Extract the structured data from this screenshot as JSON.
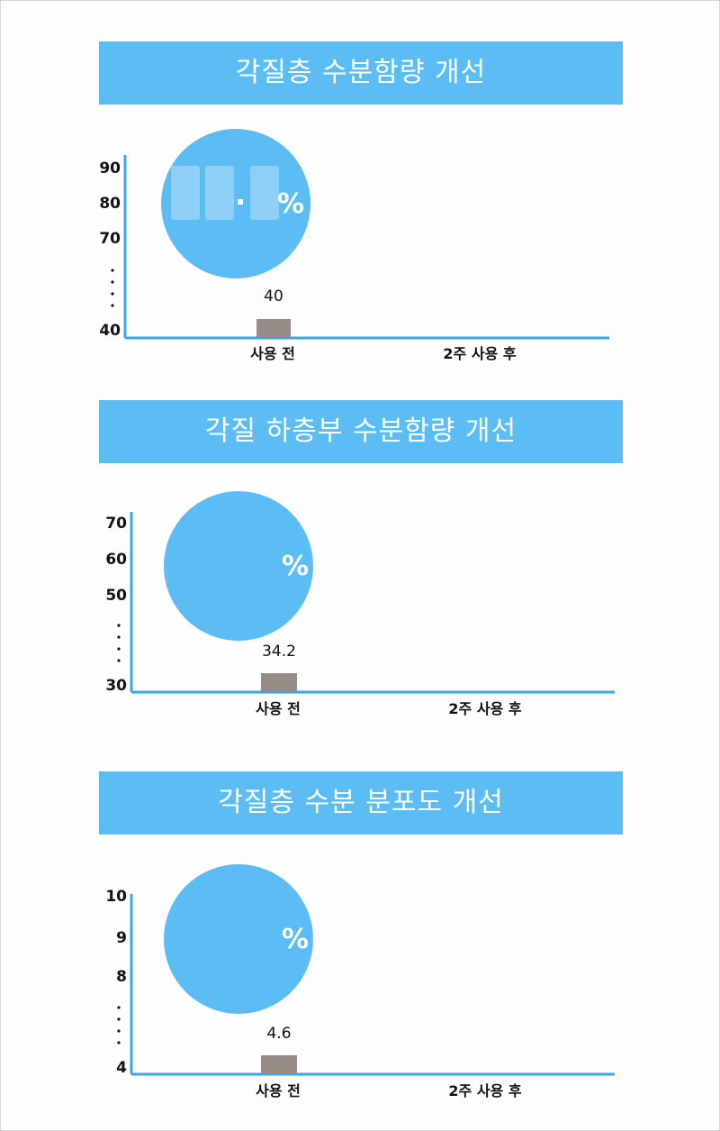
{
  "colors": {
    "banner": "#5bbdf4",
    "circle": "#5bbdf4",
    "axis": "#3aa6ec",
    "bar": "#968b86",
    "text": "#111111"
  },
  "chart_data": [
    {
      "type": "bar",
      "title": "각질층 수분함량 개선",
      "categories": [
        "사용 전",
        "2주 사용 후"
      ],
      "values": [
        40,
        null
      ],
      "value_labels": [
        "40",
        ""
      ],
      "yticks": [
        "90",
        "80",
        "70",
        "40"
      ],
      "y_break": true,
      "ylim": [
        40,
        90
      ],
      "badge": {
        "value_hidden": true,
        "blurred_digits": "▒▒.▒▒",
        "unit": "%"
      }
    },
    {
      "type": "bar",
      "title": "각질 하층부 수분함량 개선",
      "categories": [
        "사용 전",
        "2주 사용 후"
      ],
      "values": [
        34.2,
        null
      ],
      "value_labels": [
        "34.2",
        ""
      ],
      "yticks": [
        "70",
        "60",
        "50",
        "30"
      ],
      "y_break": true,
      "ylim": [
        30,
        70
      ],
      "badge": {
        "value_hidden": true,
        "unit": "%"
      }
    },
    {
      "type": "bar",
      "title": "각질층 수분 분포도 개선",
      "categories": [
        "사용 전",
        "2주 사용 후"
      ],
      "values": [
        4.6,
        null
      ],
      "value_labels": [
        "4.6",
        ""
      ],
      "yticks": [
        "10",
        "9",
        "8",
        "4"
      ],
      "y_break": true,
      "ylim": [
        4,
        10
      ],
      "badge": {
        "value_hidden": true,
        "unit": "%"
      }
    }
  ]
}
